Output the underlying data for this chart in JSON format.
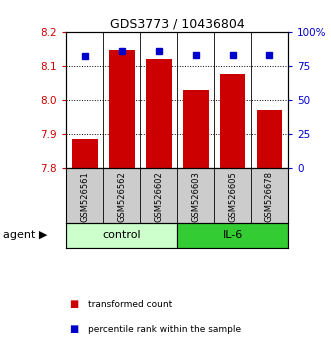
{
  "title": "GDS3773 / 10436804",
  "samples": [
    "GSM526561",
    "GSM526562",
    "GSM526602",
    "GSM526603",
    "GSM526605",
    "GSM526678"
  ],
  "bar_values": [
    7.885,
    8.148,
    8.12,
    8.03,
    8.077,
    7.972
  ],
  "percentile_values": [
    82,
    86,
    86,
    83,
    83,
    83
  ],
  "ylim_left": [
    7.8,
    8.2
  ],
  "ylim_right": [
    0,
    100
  ],
  "yticks_left": [
    7.8,
    7.9,
    8.0,
    8.1,
    8.2
  ],
  "yticks_right": [
    0,
    25,
    50,
    75,
    100
  ],
  "ytick_labels_right": [
    "0",
    "25",
    "50",
    "75",
    "100%"
  ],
  "bar_color": "#cc0000",
  "percentile_color": "#0000cc",
  "bar_bottom": 7.8,
  "groups": [
    {
      "label": "control",
      "indices": [
        0,
        1,
        2
      ],
      "color": "#ccffcc"
    },
    {
      "label": "IL-6",
      "indices": [
        3,
        4,
        5
      ],
      "color": "#33cc33"
    }
  ],
  "agent_label": "agent",
  "left_tick_color": "#cc0000",
  "right_tick_color": "#0000cc",
  "sample_box_color": "#cccccc",
  "legend_items": [
    {
      "color": "#cc0000",
      "label": "transformed count"
    },
    {
      "color": "#0000cc",
      "label": "percentile rank within the sample"
    }
  ],
  "bar_width": 0.7,
  "grid_yticks": [
    7.9,
    8.0,
    8.1
  ]
}
